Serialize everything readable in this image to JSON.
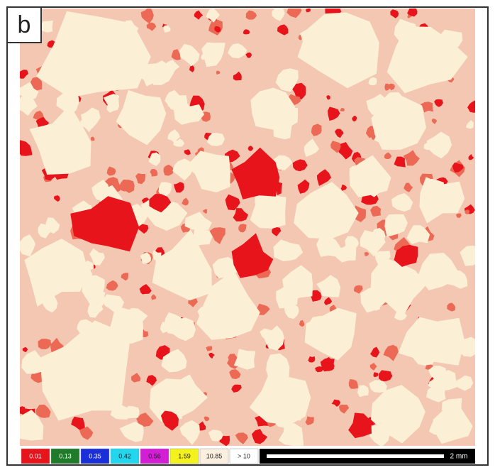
{
  "panel_label": "b",
  "legend": [
    {
      "label": "0.01",
      "color": "#e8141c"
    },
    {
      "label": "0.13",
      "color": "#1f7a2a"
    },
    {
      "label": "0.35",
      "color": "#1a2fd8"
    },
    {
      "label": "0.42",
      "color": "#22d6ee"
    },
    {
      "label": "0.56",
      "color": "#d21fd6"
    },
    {
      "label": "1.59",
      "color": "#f4f21c"
    },
    {
      "label": "10.85",
      "color": "#fbefe0"
    },
    {
      "label": "> 10",
      "color": "#ffffff"
    }
  ],
  "scale_bar": "2 mm"
}
